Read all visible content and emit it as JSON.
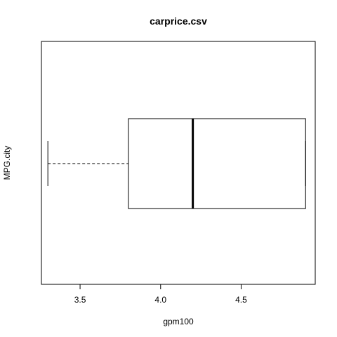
{
  "chart_data": {
    "type": "boxplot",
    "title": "carprice.csv",
    "xlabel": "gpm100",
    "ylabel": "MPG.city",
    "orientation": "horizontal",
    "xlim": [
      3.26,
      4.96
    ],
    "xticks": [
      {
        "value": 3.5,
        "label": "3.5"
      },
      {
        "value": 4.0,
        "label": "4.0"
      },
      {
        "value": 4.5,
        "label": "4.5"
      }
    ],
    "box": {
      "whisker_low": 3.3,
      "q1": 3.8,
      "median": 4.2,
      "q3": 4.9,
      "whisker_high": 4.9
    },
    "grid": false
  }
}
